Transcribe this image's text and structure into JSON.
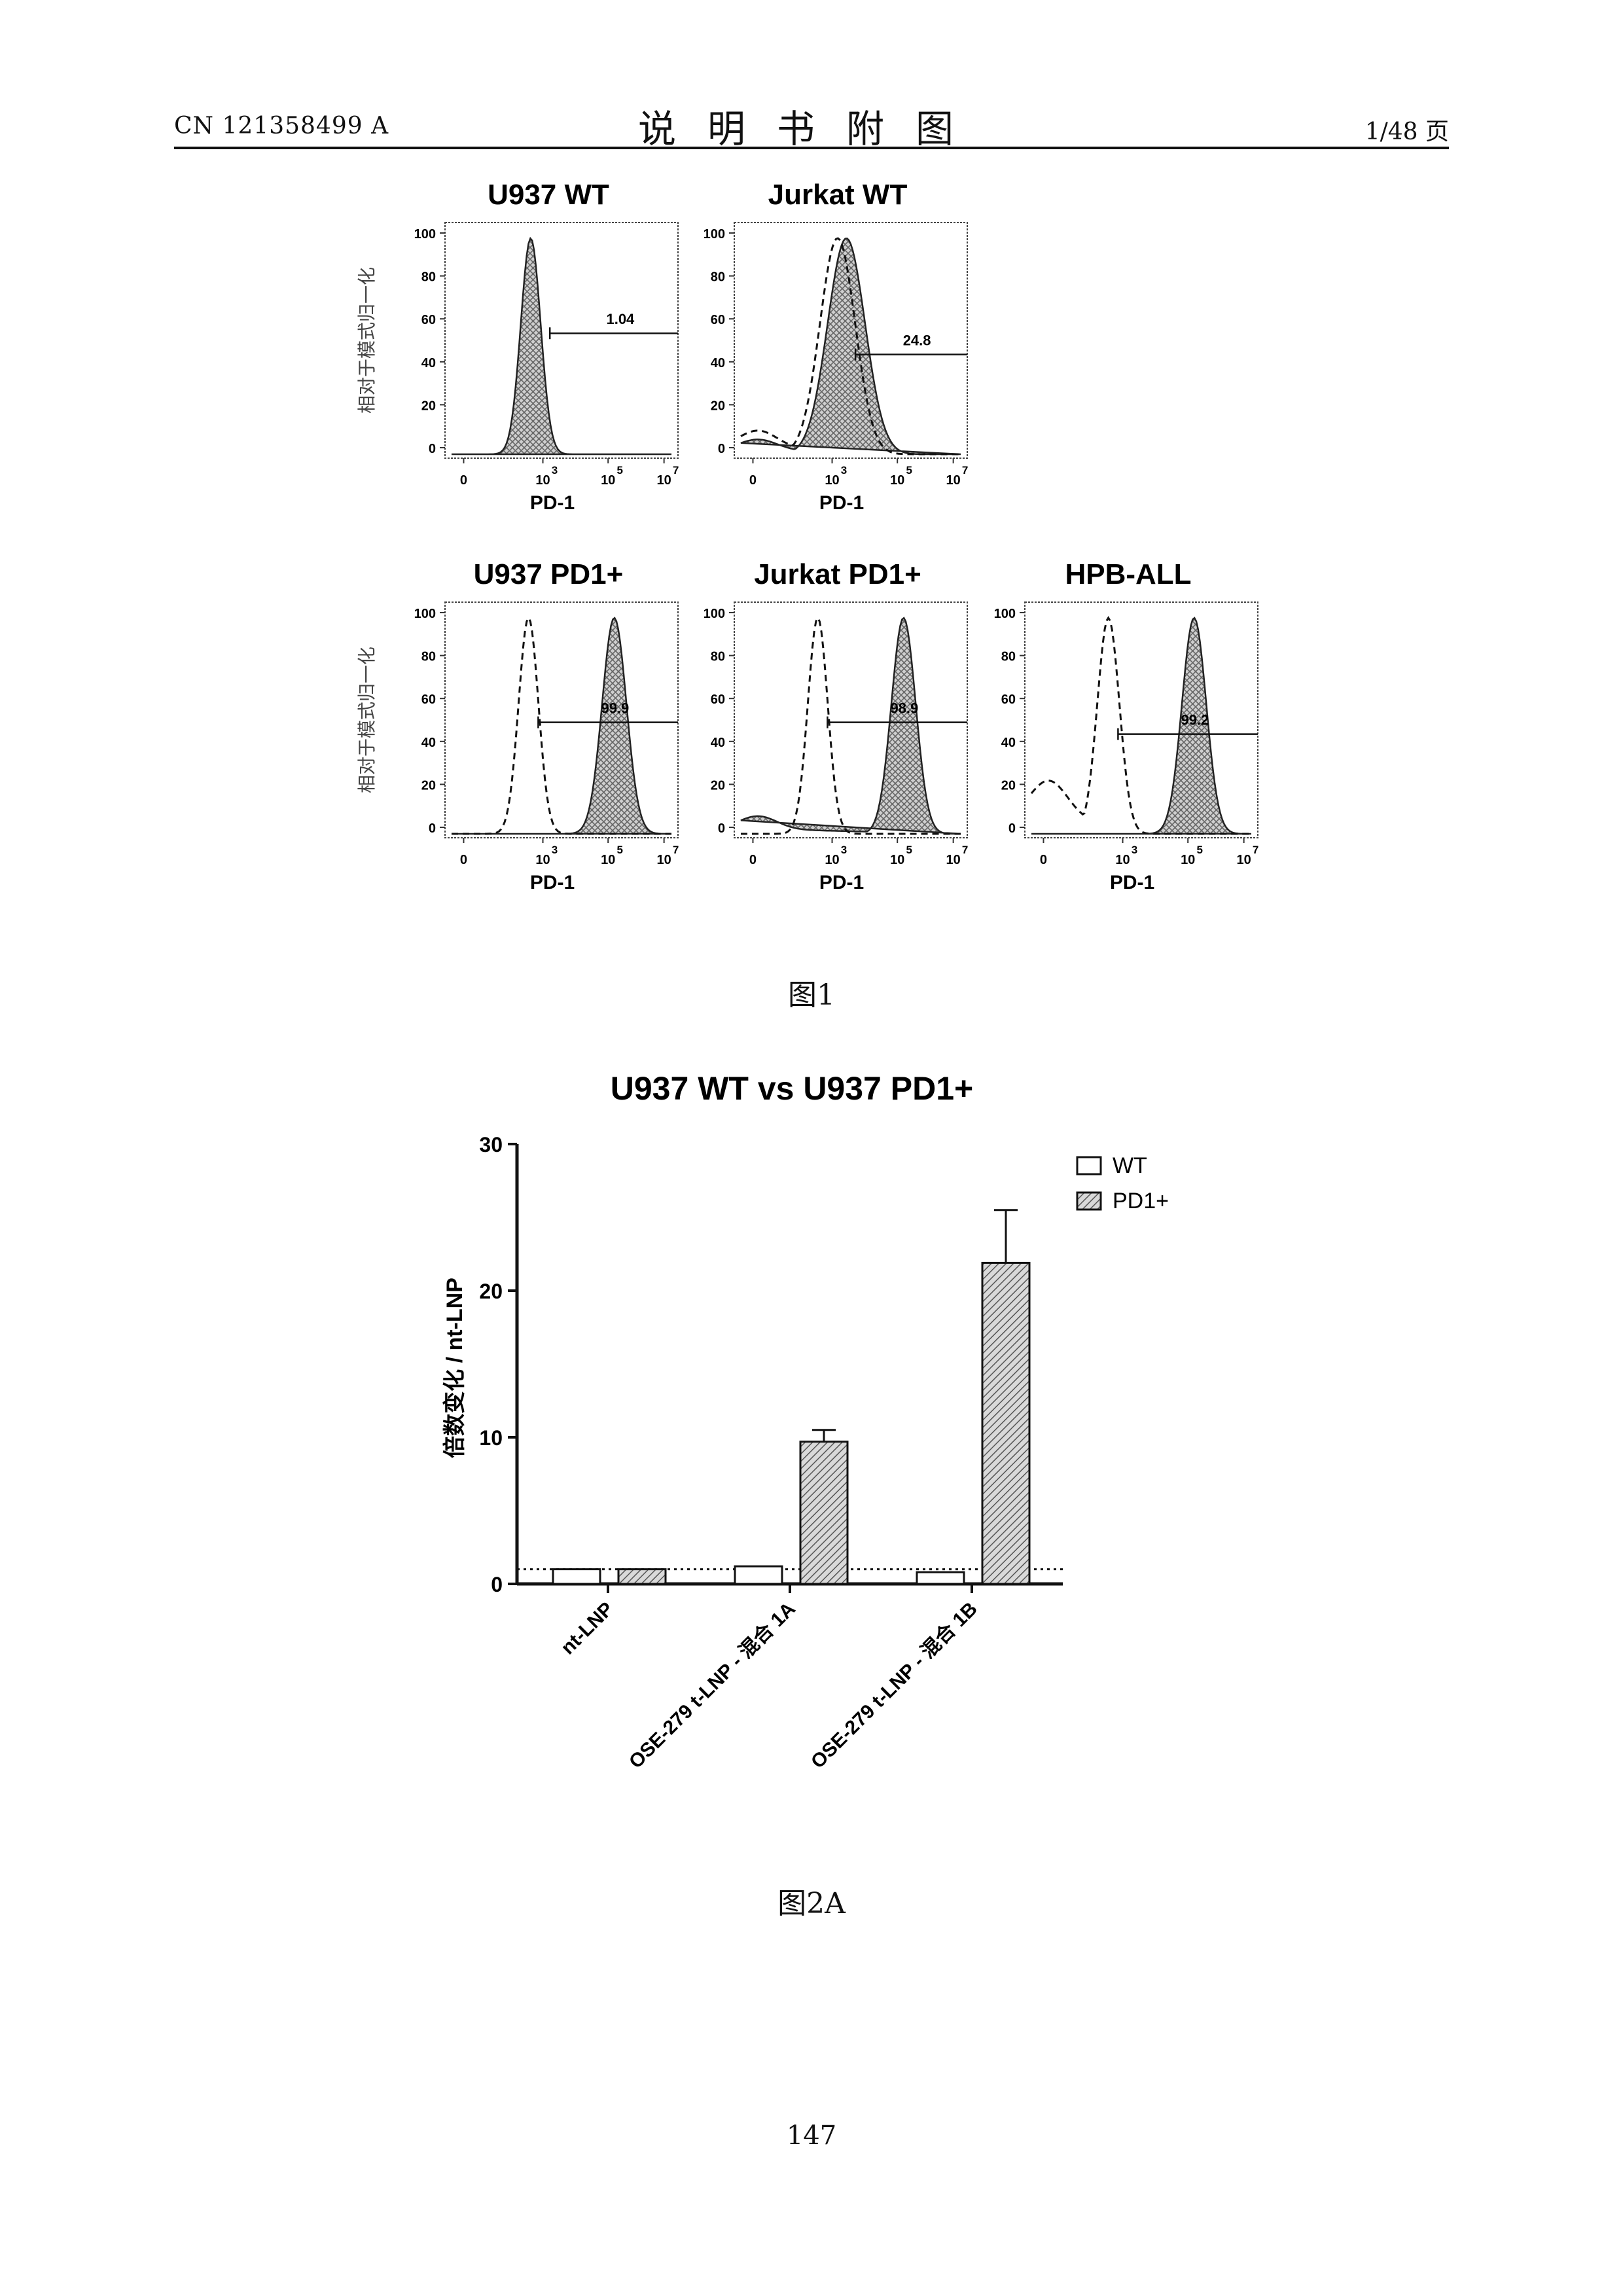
{
  "header": {
    "publication_number": "CN 121358499 A",
    "section_title": "说明书附图",
    "page_of_total": "1/48 页"
  },
  "figure1": {
    "caption": "图1",
    "y_label": "相对于模式归一化",
    "x_label": "PD-1",
    "y_ticks": [
      "100",
      "80",
      "60",
      "40",
      "20",
      "0"
    ],
    "x_tick_zero": "0",
    "x_tick_base": "10",
    "x_tick_exponents": [
      "3",
      "5",
      "7"
    ],
    "panels": [
      {
        "title": "U937 WT",
        "gate_value": "1.04",
        "has_dashed_control": false
      },
      {
        "title": "Jurkat WT",
        "gate_value": "24.8",
        "has_dashed_control": true
      },
      {
        "title": "U937 PD1+",
        "gate_value": "99.9",
        "has_dashed_control": true
      },
      {
        "title": "Jurkat PD1+",
        "gate_value": "98.9",
        "has_dashed_control": true
      },
      {
        "title": "HPB-ALL",
        "gate_value": "99.2",
        "has_dashed_control": true
      }
    ]
  },
  "figure2a": {
    "caption": "图2A",
    "chart_data": {
      "type": "bar",
      "title": "U937 WT vs U937 PD1+",
      "ylabel": "倍数变化 / nt-LNP",
      "xlabel": "",
      "ylim": [
        0,
        30
      ],
      "y_ticks": [
        0,
        10,
        20,
        30
      ],
      "categories": [
        "nt-LNP",
        "OSE-279 t-LNP - 混合 1A",
        "OSE-279 t-LNP - 混合 1B"
      ],
      "series": [
        {
          "name": "WT",
          "values": [
            1.0,
            1.2,
            0.8
          ],
          "errors": [
            0.05,
            0.05,
            0.05
          ],
          "fill": "white"
        },
        {
          "name": "PD1+",
          "values": [
            1.0,
            9.7,
            21.9
          ],
          "errors": [
            0.05,
            0.8,
            3.6
          ],
          "fill": "hatched"
        }
      ],
      "reference_line": 1.0,
      "grid": false,
      "legend_position": "top-right"
    }
  },
  "page_number": "147"
}
